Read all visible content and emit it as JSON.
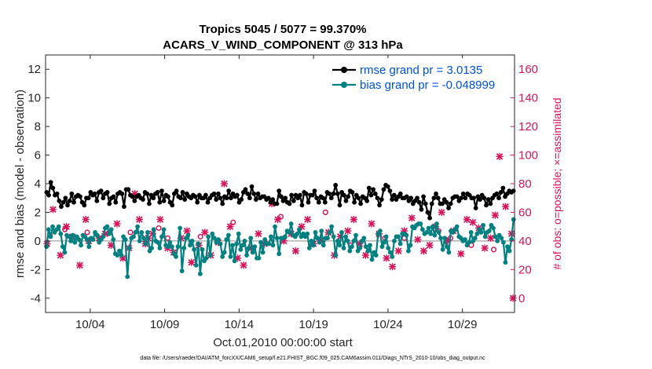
{
  "chart_data": {
    "type": "line",
    "title_line1": "Tropics 5045 / 5077 = 99.370%",
    "title_line2": "ACARS_V_WIND_COMPONENT @ 313 hPa",
    "xlabel": "Oct.01,2010 00:00:00 start",
    "ylabel": "rmse and bias (model - observation)",
    "ylabel_right": "# of obs: o=possible; ×=assimilated",
    "xlim": [
      1.0,
      32.5
    ],
    "ylim": [
      -5,
      13
    ],
    "ylim_right": [
      -10,
      170
    ],
    "xticks": [
      4,
      9,
      14,
      19,
      24,
      29
    ],
    "xtick_labels": [
      "10/04",
      "10/09",
      "10/14",
      "10/19",
      "10/24",
      "10/29"
    ],
    "yticks": [
      -4,
      -2,
      0,
      2,
      4,
      6,
      8,
      10,
      12
    ],
    "yticks_right": [
      0,
      20,
      40,
      60,
      80,
      100,
      120,
      140,
      160
    ],
    "colors": {
      "rmse": "#000000",
      "bias": "#008080",
      "counts": "#d6145b",
      "legend_text": "#0052d6",
      "zero_line": "#b3b3b3"
    },
    "footer": "data file: /Users/raeder/DAI/ATM_forcXX/CAM6_setup/f.e21.FHIST_BGC.f09_025.CAM6assim.011/Diags_NTrS_2010-10/obs_diag_output.nc",
    "series": [
      {
        "name": "rmse grand pr = 3.0135",
        "axis": "left",
        "values": [
          3.4,
          3.2,
          4.1,
          3.7,
          3.2,
          3.3,
          2.8,
          2.4,
          2.7,
          3.0,
          2.5,
          2.8,
          3.3,
          2.7,
          3.1,
          3.2,
          3.1,
          2.7,
          2.5,
          3.0,
          3.0,
          3.4,
          3.2,
          3.3,
          2.8,
          3.4,
          3.5,
          3.0,
          3.3,
          3.4,
          2.6,
          3.0,
          3.1,
          2.7,
          3.3,
          3.4,
          3.3,
          2.4,
          3.6,
          3.6,
          3.2,
          3.1,
          2.8,
          3.1,
          3.2,
          3.0,
          2.9,
          3.4,
          3.3,
          2.6,
          3.2,
          3.0,
          3.3,
          3.4,
          2.7,
          3.5,
          2.8,
          3.2,
          3.1,
          2.7,
          2.5,
          3.3,
          3.5,
          3.1,
          3.0,
          3.4,
          2.9,
          3.3,
          3.1,
          3.0,
          3.2,
          3.1,
          2.7,
          3.2,
          3.0,
          3.0,
          3.2,
          2.7,
          3.0,
          3.2,
          3.3,
          2.9,
          3.3,
          3.0,
          2.6,
          3.1,
          3.0,
          3.5,
          3.0,
          3.3,
          3.1,
          3.2,
          2.7,
          2.9,
          3.4,
          3.6,
          3.3,
          3.0,
          3.8,
          3.3,
          2.9,
          3.3,
          3.0,
          3.1,
          3.1,
          2.9,
          3.0,
          2.7,
          2.9,
          2.6,
          2.6,
          3.5,
          3.1,
          2.8,
          3.0,
          2.7,
          2.6,
          3.2,
          2.8,
          3.2,
          3.0,
          3.2,
          2.5,
          3.4,
          3.3,
          2.7,
          3.2,
          3.2,
          3.5,
          3.0,
          2.7,
          3.1,
          3.0,
          2.7,
          3.4,
          3.3,
          3.0,
          3.3,
          3.9,
          3.3,
          2.5,
          3.4,
          3.2,
          2.8,
          3.1,
          3.5,
          3.4,
          2.7,
          3.2,
          3.0,
          2.6,
          3.1,
          3.0,
          2.8,
          3.7,
          3.2,
          3.6,
          3.3,
          3.0,
          2.5,
          2.9,
          3.6,
          3.9,
          3.8,
          3.5,
          2.9,
          3.2,
          2.9,
          3.1,
          3.3,
          3.0,
          3.0,
          3.1,
          2.8,
          3.0,
          2.6,
          2.8,
          3.0,
          2.7,
          2.2,
          3.1,
          2.6,
          2.0,
          1.6,
          2.6,
          3.0,
          3.3,
          3.0,
          2.6,
          2.6,
          2.9,
          2.7,
          2.3,
          2.6,
          3.0,
          3.1,
          3.1,
          2.8,
          3.0,
          3.3,
          3.0,
          3.3,
          3.2,
          3.0,
          3.0,
          2.3,
          3.1,
          2.9,
          3.2,
          3.0,
          2.5,
          2.9,
          2.6,
          3.0,
          3.2,
          3.3,
          3.0,
          3.4,
          3.7,
          3.1,
          3.3,
          3.5,
          3.4,
          3.5
        ]
      },
      {
        "name": "bias grand pr = -0.048999",
        "axis": "left",
        "values": [
          -0.4,
          0.8,
          0.3,
          1.0,
          0.6,
          0.8,
          1.0,
          0.5,
          -0.4,
          -0.8,
          0.4,
          0.3,
          0.0,
          0.4,
          -0.1,
          0.3,
          0.1,
          -0.3,
          0.4,
          0.3,
          0.1,
          -0.4,
          0.2,
          0.1,
          0.6,
          0.4,
          -0.1,
          0.1,
          0.3,
          0.9,
          1.0,
          0.5,
          0.8,
          0.1,
          -0.9,
          -1.0,
          -0.7,
          -1.0,
          0.3,
          0.1,
          -2.5,
          -0.5,
          0.2,
          0.3,
          0.6,
          1.0,
          0.0,
          0.6,
          0.2,
          -0.2,
          0.6,
          -0.7,
          -0.5,
          0.8,
          0.0,
          -0.1,
          -0.5,
          0.3,
          0.8,
          -0.3,
          -0.4,
          -0.1,
          -0.4,
          -0.9,
          -1.1,
          -0.4,
          0.9,
          -2.1,
          -0.5,
          0.2,
          0.4,
          -0.3,
          0.0,
          -0.6,
          -1.7,
          -0.2,
          -2.3,
          -0.6,
          -1.4,
          -1.2,
          0.3,
          -1.0,
          0.5,
          0.2,
          -0.1,
          0.1,
          -0.2,
          -1.1,
          -0.8,
          0.1,
          0.4,
          -1.1,
          -0.3,
          -1.4,
          -0.2,
          0.5,
          -0.6,
          -0.3,
          0.0,
          -1.0,
          -0.5,
          0.2,
          -0.8,
          -0.4,
          -1.2,
          -1.2,
          -0.1,
          -0.8,
          0.1,
          -0.2,
          -0.2,
          0.3,
          -0.3,
          1.0,
          0.2,
          -0.9,
          0.2,
          0.2,
          0.3,
          0.7,
          0.6,
          1.2,
          0.4,
          0.3,
          0.5,
          0.8,
          0.3,
          0.5,
          0.3,
          0.5,
          -0.5,
          0.0,
          -0.3,
          0.6,
          0.2,
          -0.1,
          0.7,
          -0.3,
          0.2,
          0.2,
          0.6,
          1.0,
          0.3,
          -1.0,
          0.0,
          -0.3,
          0.6,
          -0.5,
          0.3,
          0.0,
          -0.7,
          -0.4,
          0.0,
          0.4,
          -0.7,
          -0.5,
          0.0,
          0.2,
          -0.4,
          -0.7,
          -0.3,
          -1.3,
          -0.8,
          -1.0,
          0.5,
          0.7,
          -0.4,
          -0.1,
          0.3,
          -0.5,
          -0.8,
          -1.1,
          0.0,
          0.3,
          0.3,
          -0.2,
          0.5,
          0.5,
          0.4,
          -0.7,
          -0.3,
          1.0,
          0.9,
          1.1,
          1.2,
          1.2,
          0.8,
          0.5,
          0.6,
          0.9,
          0.5,
          1.0,
          0.4,
          1.2,
          0.6,
          0.2,
          -0.6,
          0.2,
          -0.4,
          -0.8,
          0.7,
          0.6,
          0.8,
          1.0,
          0.3,
          0.2,
          0.0,
          0.1,
          -0.3,
          -0.1,
          0.6,
          0.0,
          0.2,
          0.5,
          0.8,
          0.6,
          1.1,
          0.3,
          0.6,
          0.7,
          1.1,
          0.9,
          0.3,
          0.0,
          0.4,
          0.2,
          -0.1,
          -1.5,
          -0.4,
          -0.7,
          0.1,
          1.5
        ]
      }
    ],
    "counts_possible": [
      [
        1.3,
        44
      ],
      [
        2.3,
        48
      ],
      [
        3.8,
        46
      ],
      [
        6.7,
        46
      ],
      [
        8.6,
        49
      ],
      [
        9.2,
        42
      ],
      [
        11.4,
        43
      ],
      [
        13.6,
        53
      ],
      [
        16.8,
        57
      ],
      [
        19.8,
        60
      ],
      [
        21.5,
        37
      ],
      [
        23.8,
        42
      ],
      [
        25.1,
        42
      ],
      [
        27.4,
        47
      ],
      [
        28.2,
        42
      ],
      [
        29.6,
        37
      ],
      [
        31.1,
        34
      ]
    ],
    "counts_assimilated": [
      [
        1.1,
        38
      ],
      [
        1.5,
        62
      ],
      [
        2.0,
        30
      ],
      [
        2.4,
        50
      ],
      [
        2.8,
        43
      ],
      [
        3.3,
        23
      ],
      [
        3.7,
        55
      ],
      [
        3.9,
        40
      ],
      [
        4.6,
        42
      ],
      [
        5.0,
        45
      ],
      [
        5.4,
        37
      ],
      [
        5.8,
        52
      ],
      [
        6.2,
        28
      ],
      [
        6.6,
        35
      ],
      [
        7.0,
        73
      ],
      [
        7.3,
        55
      ],
      [
        7.7,
        38
      ],
      [
        7.9,
        42
      ],
      [
        8.2,
        45
      ],
      [
        8.7,
        55
      ],
      [
        9.2,
        35
      ],
      [
        9.6,
        32
      ],
      [
        10.1,
        42
      ],
      [
        10.5,
        47
      ],
      [
        10.8,
        25
      ],
      [
        11.3,
        37
      ],
      [
        11.7,
        46
      ],
      [
        12.1,
        30
      ],
      [
        12.6,
        39
      ],
      [
        13.0,
        80
      ],
      [
        13.4,
        50
      ],
      [
        13.9,
        28
      ],
      [
        14.3,
        23
      ],
      [
        14.8,
        35
      ],
      [
        15.3,
        45
      ],
      [
        15.7,
        38
      ],
      [
        16.2,
        66
      ],
      [
        16.6,
        55
      ],
      [
        17.0,
        40
      ],
      [
        17.5,
        45
      ],
      [
        17.8,
        33
      ],
      [
        18.2,
        50
      ],
      [
        18.6,
        55
      ],
      [
        19.0,
        38
      ],
      [
        19.5,
        40
      ],
      [
        20.0,
        46
      ],
      [
        20.4,
        30
      ],
      [
        20.8,
        43
      ],
      [
        21.3,
        47
      ],
      [
        21.7,
        55
      ],
      [
        22.1,
        38
      ],
      [
        22.5,
        30
      ],
      [
        22.9,
        52
      ],
      [
        23.4,
        45
      ],
      [
        23.9,
        28
      ],
      [
        24.3,
        22
      ],
      [
        24.7,
        33
      ],
      [
        25.1,
        47
      ],
      [
        25.6,
        56
      ],
      [
        26.0,
        41
      ],
      [
        26.4,
        33
      ],
      [
        26.8,
        37
      ],
      [
        27.2,
        50
      ],
      [
        27.6,
        60
      ],
      [
        28.0,
        40
      ],
      [
        28.4,
        47
      ],
      [
        28.9,
        31
      ],
      [
        29.3,
        55
      ],
      [
        29.7,
        53
      ],
      [
        30.1,
        49
      ],
      [
        30.5,
        35
      ],
      [
        30.9,
        42
      ],
      [
        31.2,
        58
      ],
      [
        31.5,
        99
      ],
      [
        31.9,
        64
      ],
      [
        32.3,
        45
      ],
      [
        32.4,
        0
      ]
    ]
  }
}
